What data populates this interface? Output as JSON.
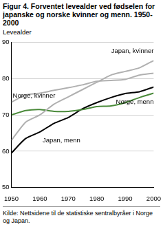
{
  "chart_data": {
    "type": "line",
    "title": "Figur 4. Forventet levealder ved fødselen for japanske og norske kvinner og menn. 1950-2000",
    "y_label": "Levealder",
    "source": "Kilde: Nettsidene til de statistiske sentralbyråer i Norge og Japan.",
    "x": [
      1950,
      1955,
      1960,
      1965,
      1970,
      1975,
      1980,
      1985,
      1990,
      1995,
      2000
    ],
    "series": [
      {
        "name": "Japan, kvinner",
        "color": "#b0b0b0",
        "values": [
          63,
          68,
          70,
          73,
          75,
          77,
          79,
          81,
          82,
          83,
          85
        ]
      },
      {
        "name": "Norge, kvinner",
        "color": "#b0b0b0",
        "values": [
          73.5,
          75.5,
          76,
          76.8,
          77.5,
          78.3,
          79.3,
          79.5,
          79.8,
          81,
          81.5
        ]
      },
      {
        "name": "Norge, menn",
        "color": "#4a8a3a",
        "values": [
          70,
          71.2,
          71.5,
          71,
          71,
          71.5,
          72.3,
          72.5,
          73.4,
          74.8,
          76
        ]
      },
      {
        "name": "Japan, menn",
        "color": "#000000",
        "values": [
          59.5,
          63.5,
          65.3,
          67.7,
          69.3,
          71.7,
          73.4,
          74.8,
          75.9,
          76.4,
          77.7
        ]
      }
    ],
    "xlim": [
      1950,
      2000
    ],
    "xticks": [
      1950,
      1960,
      1970,
      1980,
      1990,
      2000
    ],
    "ylim": [
      50,
      90
    ],
    "yticks": [
      50,
      60,
      70,
      80,
      90
    ],
    "grid": true
  }
}
